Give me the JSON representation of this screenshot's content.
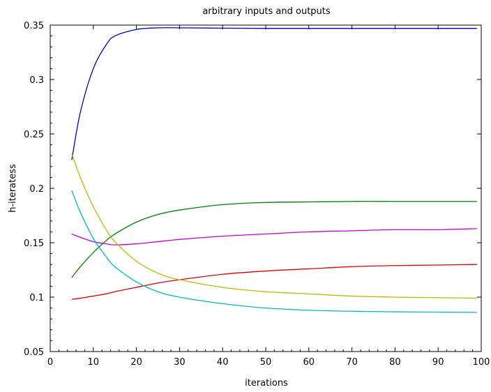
{
  "chart_data": {
    "type": "line",
    "title": "arbitrary inputs and outputs",
    "xlabel": "iterations",
    "ylabel": "h-iteratess",
    "xlim": [
      0,
      100
    ],
    "ylim": [
      0.05,
      0.35
    ],
    "xticks": [
      0,
      10,
      20,
      30,
      40,
      50,
      60,
      70,
      80,
      90,
      100
    ],
    "xtick_labels": [
      "0",
      "10",
      "20",
      "30",
      "40",
      "50",
      "60",
      "70",
      "80",
      "90",
      "100"
    ],
    "yticks": [
      0.05,
      0.1,
      0.15,
      0.2,
      0.25,
      0.3,
      0.35
    ],
    "ytick_labels": [
      "0.05",
      "0.1",
      "0.15",
      "0.2",
      "0.25",
      "0.3",
      "0.35"
    ],
    "grid": false,
    "legend": "none",
    "x": [
      5,
      7,
      10,
      13,
      15,
      20,
      25,
      30,
      40,
      50,
      60,
      70,
      80,
      90,
      99
    ],
    "series": [
      {
        "color": "#0000dd",
        "values": [
          0.226,
          0.27,
          0.31,
          0.332,
          0.34,
          0.346,
          0.3475,
          0.3475,
          0.3472,
          0.347,
          0.347,
          0.347,
          0.347,
          0.347,
          0.347
        ]
      },
      {
        "color": "#008000",
        "values": [
          0.118,
          0.128,
          0.141,
          0.152,
          0.158,
          0.169,
          0.176,
          0.18,
          0.185,
          0.187,
          0.1875,
          0.188,
          0.188,
          0.188,
          0.188
        ]
      },
      {
        "color": "#cc00cc",
        "values": [
          0.158,
          0.155,
          0.151,
          0.149,
          0.148,
          0.149,
          0.151,
          0.153,
          0.156,
          0.158,
          0.16,
          0.161,
          0.162,
          0.162,
          0.163
        ]
      },
      {
        "color": "#e00000",
        "values": [
          0.098,
          0.099,
          0.101,
          0.103,
          0.105,
          0.109,
          0.113,
          0.116,
          0.121,
          0.124,
          0.126,
          0.128,
          0.129,
          0.1295,
          0.13
        ]
      },
      {
        "color": "#bbbb00",
        "values": [
          0.232,
          0.21,
          0.183,
          0.162,
          0.151,
          0.133,
          0.122,
          0.116,
          0.109,
          0.105,
          0.103,
          0.101,
          0.1,
          0.0995,
          0.099
        ]
      },
      {
        "color": "#00bbbb",
        "values": [
          0.198,
          0.178,
          0.154,
          0.137,
          0.128,
          0.114,
          0.105,
          0.1,
          0.094,
          0.09,
          0.088,
          0.087,
          0.0865,
          0.0862,
          0.086
        ]
      }
    ]
  }
}
